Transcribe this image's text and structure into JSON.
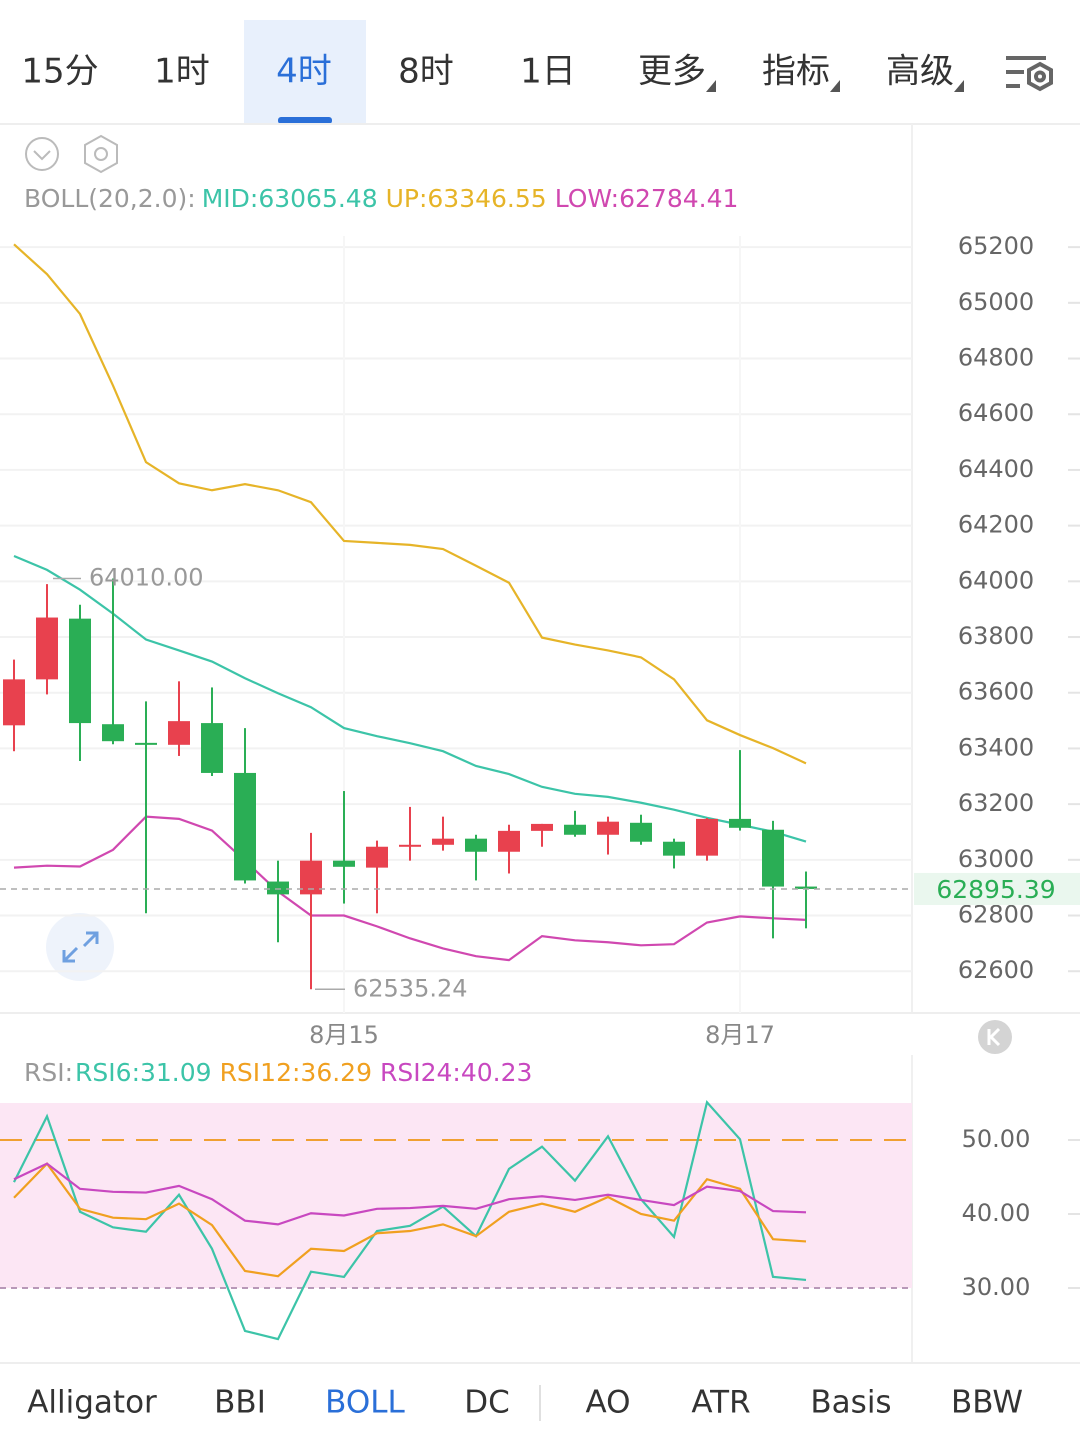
{
  "tabs": [
    "15分",
    "1时",
    "4时",
    "8时",
    "1日",
    "更多",
    "指标",
    "高级"
  ],
  "selected_tab": 2,
  "indicator_tabs": [
    "Alligator",
    "BBI",
    "BOLL",
    "DC",
    "AO",
    "ATR",
    "Basis",
    "BBW"
  ],
  "selected_indicator": 2,
  "chart_data": [
    {
      "type": "candlestick",
      "indicator_label": "BOLL(20,2.0):",
      "categories": [
        null,
        null,
        null,
        null,
        null,
        null,
        null,
        null,
        null,
        null,
        "8月15",
        null,
        null,
        null,
        null,
        null,
        null,
        null,
        null,
        null,
        null,
        null,
        "8月17",
        null,
        null
      ],
      "open": [
        63483,
        63648,
        63866,
        63487,
        63420,
        63413,
        63491,
        63312,
        62922,
        62876,
        62997,
        62972,
        63047,
        63054,
        63076,
        63029,
        63104,
        63126,
        63090,
        63133,
        63065,
        63015,
        63147,
        63108,
        62904
      ],
      "high": [
        63719,
        63990,
        63916,
        64010,
        63569,
        63641,
        63619,
        63473,
        62997,
        63097,
        63247,
        63069,
        63190,
        63155,
        63090,
        63126,
        63129,
        63176,
        63155,
        63162,
        63076,
        63150,
        63394,
        63140,
        62958
      ],
      "low": [
        63390,
        63594,
        63355,
        63415,
        62808,
        63373,
        63301,
        62915,
        62704,
        62535.24,
        62843,
        62808,
        62997,
        63033,
        62926,
        62951,
        63047,
        63083,
        63019,
        63054,
        62969,
        62997,
        63105,
        62718,
        62754
      ],
      "close": [
        63648,
        63870,
        63491,
        63426,
        63413,
        63498,
        63312,
        62926,
        62876,
        62997,
        62975,
        63047,
        63054,
        63076,
        63029,
        63104,
        63129,
        63090,
        63137,
        63065,
        63015,
        63147,
        63115,
        62904,
        62895.39
      ],
      "up_color": "#e8414e",
      "down_color": "#2aae55",
      "series": [
        {
          "name": "MID:63065.48",
          "color": "#3cc4a8",
          "values": [
            64091,
            64041,
            63970,
            63884,
            63791,
            63752,
            63712,
            63652,
            63598,
            63548,
            63473,
            63444,
            63419,
            63390,
            63337,
            63308,
            63262,
            63237,
            63226,
            63205,
            63180,
            63151,
            63126,
            63101,
            63065.48
          ]
        },
        {
          "name": "UP:63346.55",
          "color": "#e6b428",
          "values": [
            65210,
            65103,
            64960,
            64703,
            64428,
            64352,
            64327,
            64349,
            64327,
            64284,
            64145,
            64138,
            64131,
            64116,
            64056,
            63995,
            63798,
            63773,
            63752,
            63727,
            63648,
            63501,
            63448,
            63401,
            63346.55
          ]
        },
        {
          "name": "LOW:62784.41",
          "color": "#d048b0",
          "values": [
            62972,
            62979,
            62976,
            63036,
            63155,
            63147,
            63105,
            62997,
            62886,
            62800,
            62800,
            62761,
            62718,
            62682,
            62654,
            62640,
            62726,
            62711,
            62704,
            62693,
            62697,
            62775,
            62797,
            62790,
            62784.41
          ]
        }
      ],
      "ylim": [
        62450,
        65240
      ],
      "yticks": [
        62600,
        62800,
        63000,
        63200,
        63400,
        63600,
        63800,
        64000,
        64200,
        64400,
        64600,
        64800,
        65000,
        65200
      ],
      "grid": true,
      "annotations": {
        "high": "64010.00",
        "low": "62535.24",
        "last": "62895.39"
      }
    },
    {
      "type": "line",
      "indicator_label": "RSI:",
      "series": [
        {
          "name": "RSI6:31.09",
          "color": "#3cc4a8",
          "values": [
            44.3,
            53.2,
            40.3,
            38.2,
            37.6,
            42.6,
            35.3,
            24.2,
            23.1,
            32.2,
            31.5,
            37.7,
            38.4,
            41.0,
            37.0,
            46.1,
            49.1,
            44.5,
            50.5,
            42.0,
            36.9,
            55.1,
            50.1,
            31.5,
            31.09
          ]
        },
        {
          "name": "RSI12:36.29",
          "color": "#f0a020",
          "values": [
            42.2,
            46.8,
            40.7,
            39.5,
            39.3,
            41.4,
            38.5,
            32.3,
            31.6,
            35.3,
            35.0,
            37.4,
            37.7,
            38.6,
            37.0,
            40.3,
            41.4,
            40.3,
            42.3,
            40.0,
            39.1,
            44.7,
            43.4,
            36.6,
            36.29
          ]
        },
        {
          "name": "RSI24:40.23",
          "color": "#c848c0",
          "values": [
            44.7,
            46.8,
            43.4,
            43.0,
            42.9,
            43.8,
            42.0,
            39.1,
            38.6,
            40.1,
            39.8,
            40.7,
            40.8,
            41.1,
            40.7,
            42.0,
            42.4,
            41.9,
            42.6,
            41.9,
            41.2,
            43.7,
            43.1,
            40.4,
            40.23
          ]
        }
      ],
      "ylim": [
        20,
        55
      ],
      "yticks": [
        {
          "value": 30,
          "label": "30.00"
        },
        {
          "value": 40,
          "label": "40.00"
        },
        {
          "value": 50,
          "label": "50.00"
        }
      ],
      "reference_lines": [
        {
          "value": 50,
          "color": "#f0a030"
        },
        {
          "value": 30,
          "color": "#b898b8"
        }
      ],
      "band_color": "#fce6f4"
    }
  ]
}
